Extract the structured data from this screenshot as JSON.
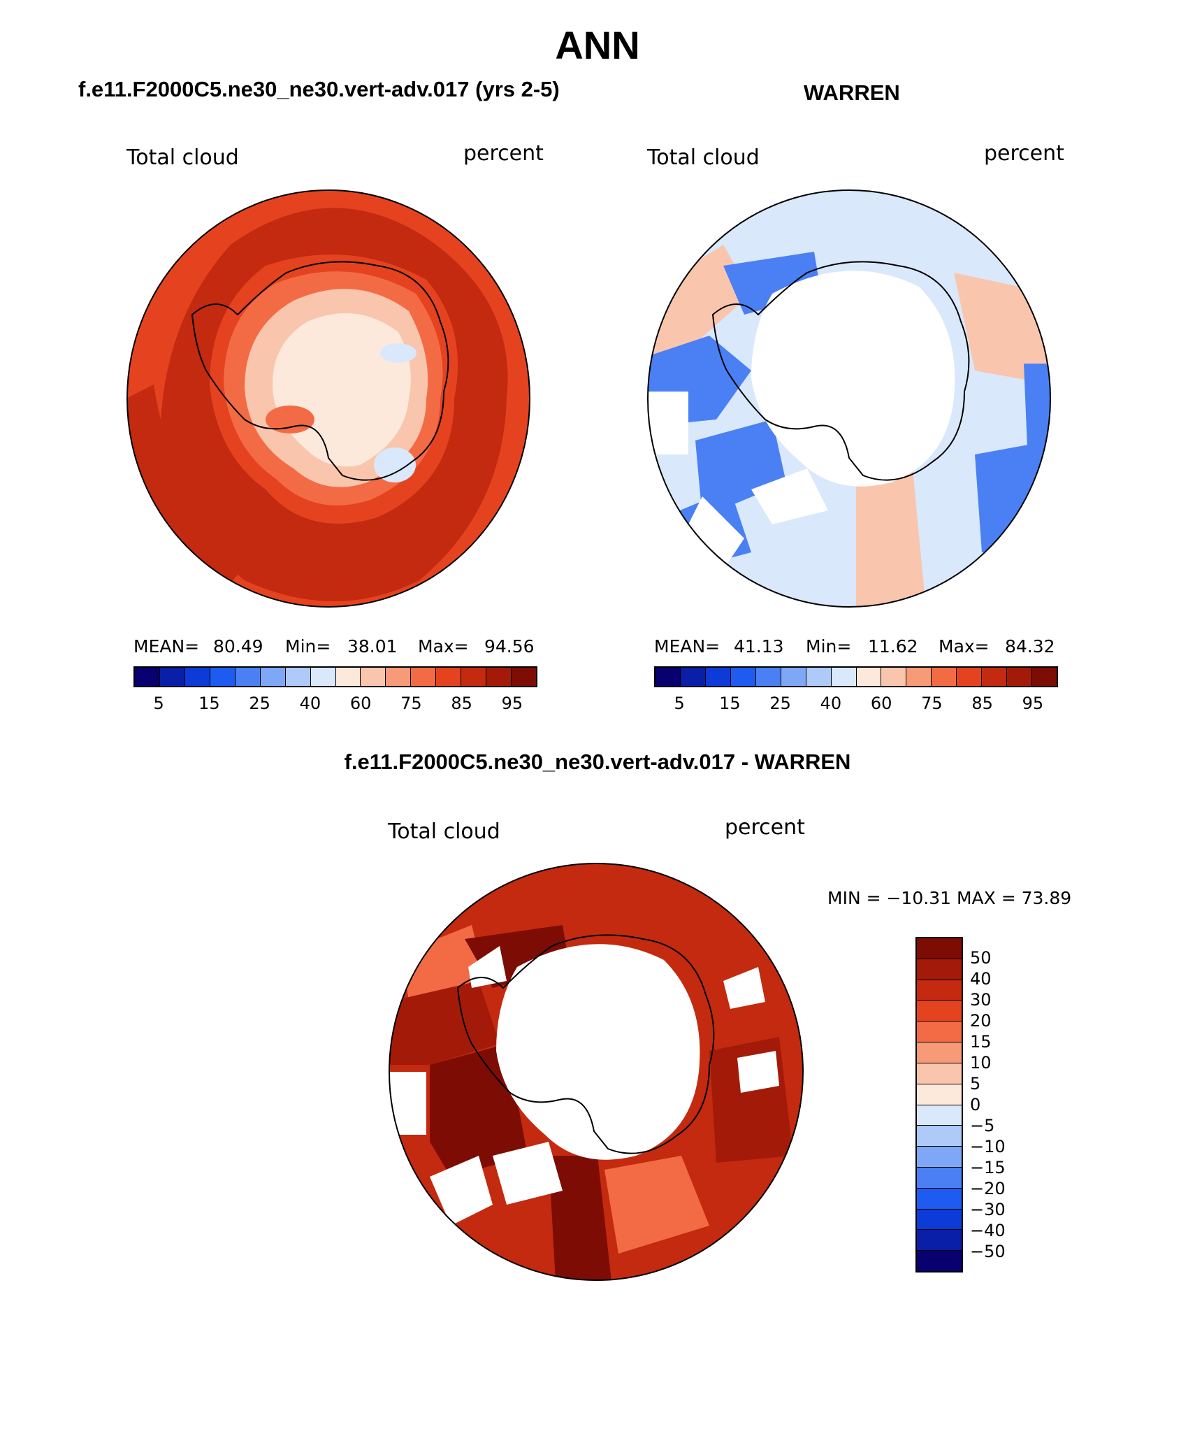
{
  "title": "ANN",
  "panels": {
    "model": {
      "heading": "f.e11.F2000C5.ne30_ne30.vert-adv.017 (yrs 2-5)",
      "variable": "Total cloud",
      "units": "percent",
      "mean_label": "MEAN=",
      "mean": "80.49",
      "min_label": "Min=",
      "min": "38.01",
      "max_label": "Max=",
      "max": "94.56"
    },
    "obs": {
      "heading": "WARREN",
      "variable": "Total cloud",
      "units": "percent",
      "mean_label": "MEAN=",
      "mean": "41.13",
      "min_label": "Min=",
      "min": "11.62",
      "max_label": "Max=",
      "max": "84.32"
    },
    "diff": {
      "heading": "f.e11.F2000C5.ne30_ne30.vert-adv.017 - WARREN",
      "variable": "Total cloud",
      "units": "percent",
      "minmax": "MIN = −10.31 MAX =   73.89"
    }
  },
  "colorbar_abs": {
    "colors": [
      "#08006e",
      "#0a1fa8",
      "#0c3bd8",
      "#1e5bf0",
      "#4a80f3",
      "#7ea8f6",
      "#adcaf8",
      "#d9e8fb",
      "#fde9db",
      "#f9c6ad",
      "#f69a77",
      "#f36b45",
      "#e5431f",
      "#c32a0f",
      "#a31b08",
      "#7d0c05"
    ],
    "labels": [
      "5",
      "15",
      "25",
      "40",
      "60",
      "75",
      "85",
      "95"
    ]
  },
  "colorbar_diff": {
    "colors": [
      "#7d0c05",
      "#a31b08",
      "#c32a0f",
      "#e5431f",
      "#f36b45",
      "#f69a77",
      "#f9c6ad",
      "#fde9db",
      "#d9e8fb",
      "#adcaf8",
      "#7ea8f6",
      "#4a80f3",
      "#1e5bf0",
      "#0c3bd8",
      "#0a1fa8",
      "#08006e"
    ],
    "labels": [
      "50",
      "40",
      "30",
      "20",
      "15",
      "10",
      "5",
      "0",
      "−5",
      "−10",
      "−15",
      "−20",
      "−30",
      "−40",
      "−50"
    ]
  },
  "map_colors": {
    "deep": "#a31b08",
    "mid": "#c32a0f",
    "orange": "#e5431f",
    "light_orange": "#f36b45",
    "salmon": "#f69a77",
    "peach": "#f9c6ad",
    "cream": "#fde9db",
    "pale_blue": "#d9e8fb",
    "light_blue": "#adcaf8",
    "blue": "#4a80f3",
    "dark_blue": "#1e5bf0",
    "dark_red": "#7d0c05",
    "white": "#ffffff"
  }
}
